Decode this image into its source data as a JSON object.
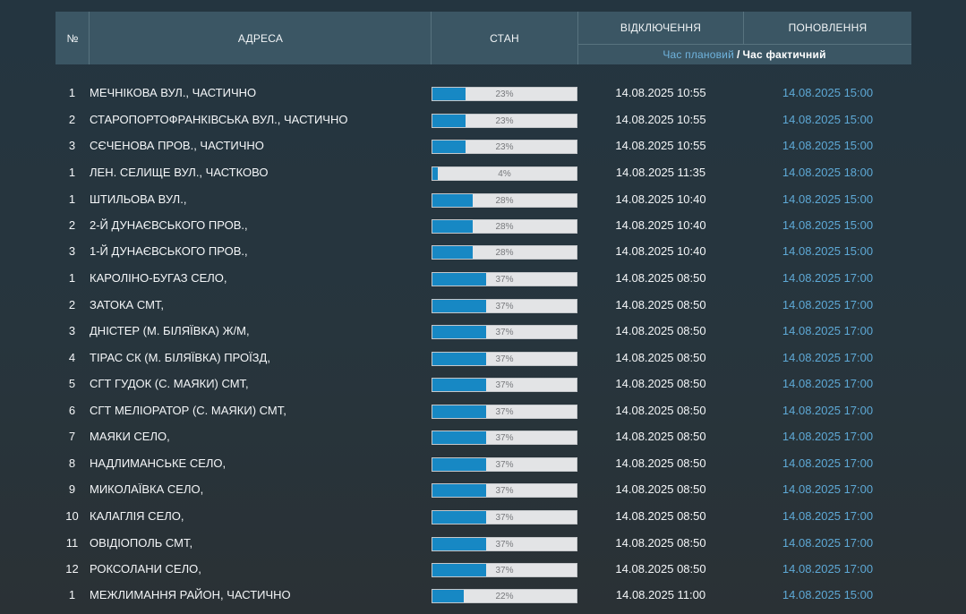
{
  "header": {
    "num": "№",
    "address": "АДРЕСА",
    "status": "СТАН",
    "outage": "ВІДКЛЮЧЕННЯ",
    "restore": "ПОНОВЛЕННЯ",
    "planned": "Час плановий",
    "separator": "/",
    "actual": "Час фактичний"
  },
  "colors": {
    "header_bg": "#3b5664",
    "bar_fill": "#1788c4",
    "bar_track": "#e3e4e6",
    "restore_text": "#5ea9d6"
  },
  "rows": [
    {
      "num": "1",
      "address": "МЕЧНІКОВА ВУЛ., ЧАСТИЧНО",
      "progress": 23,
      "progress_label": "23%",
      "outage": "14.08.2025 10:55",
      "restore": "14.08.2025 15:00"
    },
    {
      "num": "2",
      "address": "СТАРОПОРТОФРАНКІВСЬКА ВУЛ., ЧАСТИЧНО",
      "progress": 23,
      "progress_label": "23%",
      "outage": "14.08.2025 10:55",
      "restore": "14.08.2025 15:00"
    },
    {
      "num": "3",
      "address": "СЄЧЕНОВА ПРОВ., ЧАСТИЧНО",
      "progress": 23,
      "progress_label": "23%",
      "outage": "14.08.2025 10:55",
      "restore": "14.08.2025 15:00"
    },
    {
      "num": "1",
      "address": "ЛЕН. СЕЛИЩЕ ВУЛ., ЧАСТКОВО",
      "progress": 4,
      "progress_label": "4%",
      "outage": "14.08.2025 11:35",
      "restore": "14.08.2025 18:00"
    },
    {
      "num": "1",
      "address": "ШТИЛЬОВА ВУЛ.,",
      "progress": 28,
      "progress_label": "28%",
      "outage": "14.08.2025 10:40",
      "restore": "14.08.2025 15:00"
    },
    {
      "num": "2",
      "address": "2-Й ДУНАЄВСЬКОГО ПРОВ.,",
      "progress": 28,
      "progress_label": "28%",
      "outage": "14.08.2025 10:40",
      "restore": "14.08.2025 15:00"
    },
    {
      "num": "3",
      "address": "1-Й ДУНАЄВСЬКОГО ПРОВ.,",
      "progress": 28,
      "progress_label": "28%",
      "outage": "14.08.2025 10:40",
      "restore": "14.08.2025 15:00"
    },
    {
      "num": "1",
      "address": "КАРОЛІНО-БУГАЗ СЕЛО,",
      "progress": 37,
      "progress_label": "37%",
      "outage": "14.08.2025 08:50",
      "restore": "14.08.2025 17:00"
    },
    {
      "num": "2",
      "address": "ЗАТОКА СМТ,",
      "progress": 37,
      "progress_label": "37%",
      "outage": "14.08.2025 08:50",
      "restore": "14.08.2025 17:00"
    },
    {
      "num": "3",
      "address": "ДНІСТЕР (М. БІЛЯЇВКА) Ж/М,",
      "progress": 37,
      "progress_label": "37%",
      "outage": "14.08.2025 08:50",
      "restore": "14.08.2025 17:00"
    },
    {
      "num": "4",
      "address": "ТІРАС СК (М. БІЛЯЇВКА) ПРОЇЗД,",
      "progress": 37,
      "progress_label": "37%",
      "outage": "14.08.2025 08:50",
      "restore": "14.08.2025 17:00"
    },
    {
      "num": "5",
      "address": "СГТ ГУДОК (С. МАЯКИ) СМТ,",
      "progress": 37,
      "progress_label": "37%",
      "outage": "14.08.2025 08:50",
      "restore": "14.08.2025 17:00"
    },
    {
      "num": "6",
      "address": "СГТ МЕЛІОРАТОР (С. МАЯКИ) СМТ,",
      "progress": 37,
      "progress_label": "37%",
      "outage": "14.08.2025 08:50",
      "restore": "14.08.2025 17:00"
    },
    {
      "num": "7",
      "address": "МАЯКИ СЕЛО,",
      "progress": 37,
      "progress_label": "37%",
      "outage": "14.08.2025 08:50",
      "restore": "14.08.2025 17:00"
    },
    {
      "num": "8",
      "address": "НАДЛИМАНСЬКЕ СЕЛО,",
      "progress": 37,
      "progress_label": "37%",
      "outage": "14.08.2025 08:50",
      "restore": "14.08.2025 17:00"
    },
    {
      "num": "9",
      "address": "МИКОЛАЇВКА СЕЛО,",
      "progress": 37,
      "progress_label": "37%",
      "outage": "14.08.2025 08:50",
      "restore": "14.08.2025 17:00"
    },
    {
      "num": "10",
      "address": "КАЛАГЛІЯ СЕЛО,",
      "progress": 37,
      "progress_label": "37%",
      "outage": "14.08.2025 08:50",
      "restore": "14.08.2025 17:00"
    },
    {
      "num": "11",
      "address": "ОВІДІОПОЛЬ СМТ,",
      "progress": 37,
      "progress_label": "37%",
      "outage": "14.08.2025 08:50",
      "restore": "14.08.2025 17:00"
    },
    {
      "num": "12",
      "address": "РОКСОЛАНИ СЕЛО,",
      "progress": 37,
      "progress_label": "37%",
      "outage": "14.08.2025 08:50",
      "restore": "14.08.2025 17:00"
    },
    {
      "num": "1",
      "address": "МЕЖЛИМАННЯ РАЙОН, ЧАСТИЧНО",
      "progress": 22,
      "progress_label": "22%",
      "outage": "14.08.2025 11:00",
      "restore": "14.08.2025 15:00"
    }
  ]
}
